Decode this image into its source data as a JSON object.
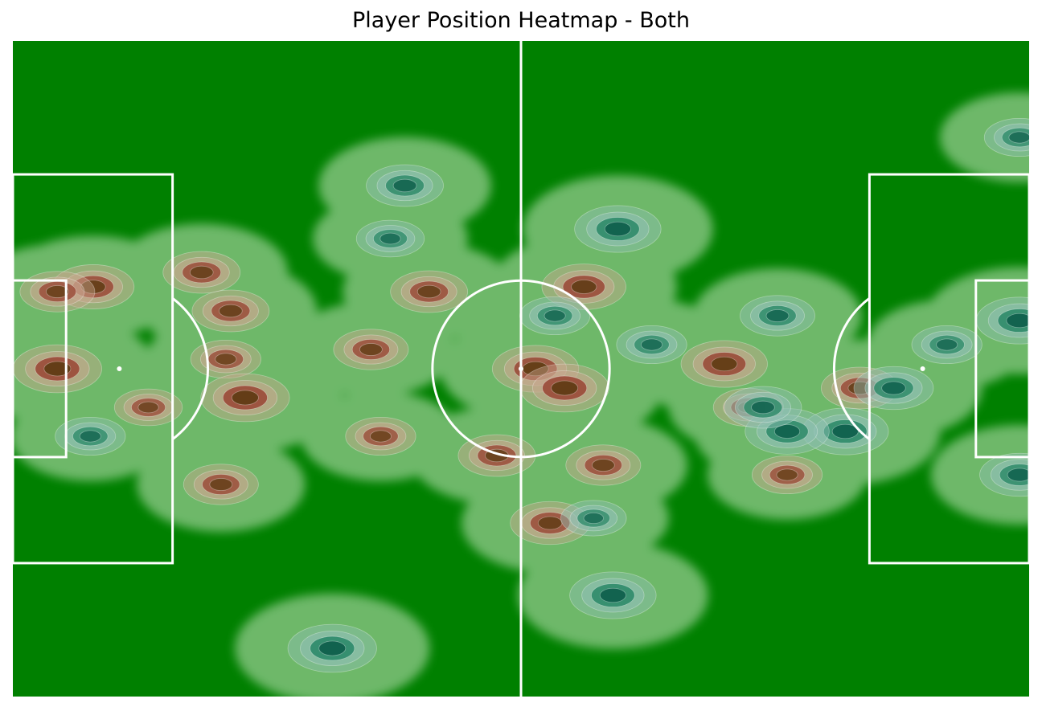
{
  "chart_data": {
    "type": "heatmap",
    "title": "Player Position Heatmap - Both",
    "xlabel": "",
    "ylabel": "",
    "xlim": [
      0,
      105
    ],
    "ylim": [
      0,
      68
    ],
    "grid": false,
    "legend": "none",
    "colors": {
      "pitch": "#008000",
      "lines": "#ffffff",
      "contour_line": "#ffffff",
      "density_low": "#c8e6c0",
      "home_mid": "#c9a78f",
      "home_high": "#9a4a38",
      "home_peak": "#5a3a10",
      "away_mid": "#8fbfb4",
      "away_high": "#2e8a6a",
      "away_peak": "#0a5a48"
    },
    "series": [
      {
        "colormap": "reds",
        "points": [
          {
            "x": 4.6,
            "y": 34.0,
            "w": 1.0
          },
          {
            "x": 8.3,
            "y": 42.5,
            "w": 0.85
          },
          {
            "x": 4.6,
            "y": 42.0,
            "w": 0.7
          },
          {
            "x": 19.5,
            "y": 44.0,
            "w": 0.75
          },
          {
            "x": 22.5,
            "y": 40.0,
            "w": 0.75
          },
          {
            "x": 22.0,
            "y": 35.0,
            "w": 0.6
          },
          {
            "x": 24.0,
            "y": 31.0,
            "w": 1.0
          },
          {
            "x": 37.0,
            "y": 36.0,
            "w": 0.7
          },
          {
            "x": 43.0,
            "y": 42.0,
            "w": 0.75
          },
          {
            "x": 38.0,
            "y": 27.0,
            "w": 0.6
          },
          {
            "x": 50.0,
            "y": 25.0,
            "w": 0.75
          },
          {
            "x": 54.0,
            "y": 34.0,
            "w": 0.95
          },
          {
            "x": 57.0,
            "y": 32.0,
            "w": 1.0
          },
          {
            "x": 59.0,
            "y": 42.5,
            "w": 0.9
          },
          {
            "x": 61.0,
            "y": 24.0,
            "w": 0.7
          },
          {
            "x": 55.5,
            "y": 18.0,
            "w": 0.8
          },
          {
            "x": 73.5,
            "y": 34.5,
            "w": 0.95
          },
          {
            "x": 76.0,
            "y": 30.0,
            "w": 0.6
          },
          {
            "x": 80.0,
            "y": 23.0,
            "w": 0.6
          },
          {
            "x": 87.5,
            "y": 32.0,
            "w": 0.75
          },
          {
            "x": 21.5,
            "y": 22.0,
            "w": 0.7
          },
          {
            "x": 14.0,
            "y": 30.0,
            "w": 0.55
          }
        ]
      },
      {
        "colormap": "greens",
        "points": [
          {
            "x": 40.5,
            "y": 53.0,
            "w": 0.75
          },
          {
            "x": 62.5,
            "y": 48.5,
            "w": 0.95
          },
          {
            "x": 86.0,
            "y": 27.5,
            "w": 0.95
          },
          {
            "x": 80.0,
            "y": 27.5,
            "w": 0.9
          },
          {
            "x": 104.0,
            "y": 39.0,
            "w": 0.95
          },
          {
            "x": 104.0,
            "y": 23.0,
            "w": 0.8
          },
          {
            "x": 91.0,
            "y": 32.0,
            "w": 0.8
          },
          {
            "x": 77.5,
            "y": 30.0,
            "w": 0.75
          },
          {
            "x": 62.0,
            "y": 10.5,
            "w": 0.95
          },
          {
            "x": 33.0,
            "y": 5.0,
            "w": 1.0
          },
          {
            "x": 79.0,
            "y": 39.5,
            "w": 0.7
          },
          {
            "x": 56.0,
            "y": 39.5,
            "w": 0.6
          },
          {
            "x": 96.5,
            "y": 36.5,
            "w": 0.6
          },
          {
            "x": 8.0,
            "y": 27.0,
            "w": 0.6
          },
          {
            "x": 39.0,
            "y": 47.5,
            "w": 0.55
          },
          {
            "x": 66.0,
            "y": 36.5,
            "w": 0.6
          },
          {
            "x": 104.0,
            "y": 58.0,
            "w": 0.6
          },
          {
            "x": 60.0,
            "y": 18.5,
            "w": 0.5
          }
        ]
      }
    ]
  }
}
